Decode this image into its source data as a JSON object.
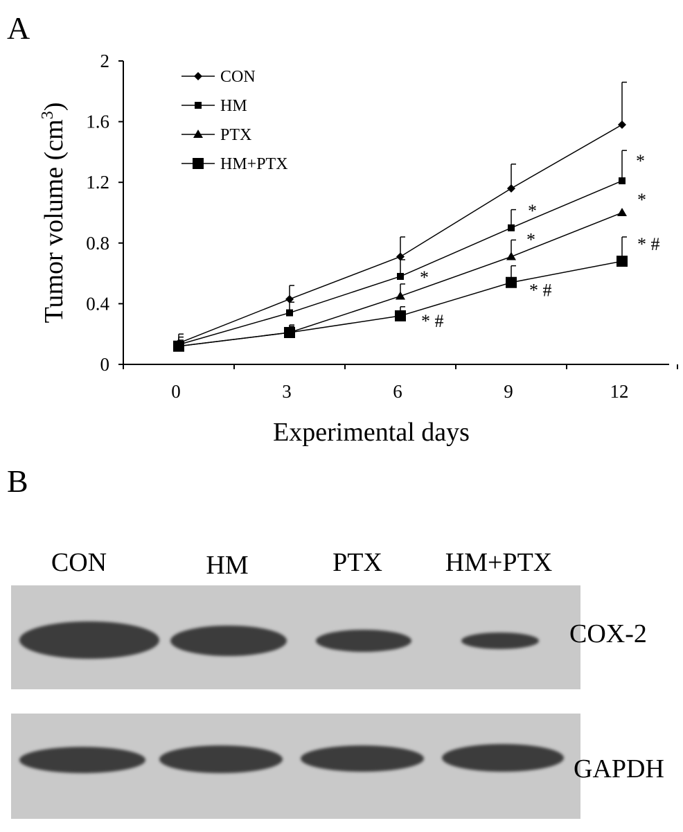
{
  "panels": {
    "a_label": "A",
    "b_label": "B"
  },
  "chart_data": {
    "type": "line",
    "xlabel": "Experimental days",
    "ylabel_main": "Tumor volume (cm",
    "ylabel_sup": "3",
    "ylabel_close": ")",
    "ylim": [
      0,
      2
    ],
    "xticks": [
      "0",
      "3",
      "6",
      "9",
      "12"
    ],
    "yticks": [
      "0",
      "0.4",
      "0.8",
      "1.2",
      "1.6",
      "2"
    ],
    "x": [
      0,
      3,
      6,
      9,
      12
    ],
    "legend_position": "top-left",
    "series": [
      {
        "name": "CON",
        "marker": "diamond",
        "values": [
          0.14,
          0.43,
          0.71,
          1.16,
          1.58
        ],
        "errors": [
          0.06,
          0.09,
          0.13,
          0.16,
          0.28
        ],
        "annotations": [
          "",
          "",
          "",
          "",
          ""
        ]
      },
      {
        "name": "HM",
        "marker": "square-small",
        "values": [
          0.13,
          0.34,
          0.58,
          0.9,
          1.21
        ],
        "errors": [
          0.05,
          0.07,
          0.11,
          0.12,
          0.2
        ],
        "annotations": [
          "",
          "",
          "*",
          "*",
          "*"
        ]
      },
      {
        "name": "PTX",
        "marker": "triangle",
        "values": [
          0.12,
          0.21,
          0.45,
          0.71,
          1.0
        ],
        "errors": [
          0.04,
          0.05,
          0.08,
          0.11,
          0.0
        ],
        "annotations": [
          "",
          "",
          "",
          "*",
          "*"
        ]
      },
      {
        "name": "HM+PTX",
        "marker": "square-large",
        "values": [
          0.12,
          0.21,
          0.32,
          0.54,
          0.68
        ],
        "errors": [
          0.03,
          0.04,
          0.06,
          0.11,
          0.16
        ],
        "annotations": [
          "",
          "",
          "* #",
          "* #",
          "* #"
        ]
      }
    ]
  },
  "western_blot": {
    "lanes": [
      "CON",
      "HM",
      "PTX",
      "HM+PTX"
    ],
    "rows": [
      {
        "label": "COX-2",
        "intensities": [
          1.0,
          0.82,
          0.55,
          0.35
        ]
      },
      {
        "label": "GAPDH",
        "intensities": [
          0.85,
          0.85,
          0.85,
          0.85
        ]
      }
    ]
  }
}
